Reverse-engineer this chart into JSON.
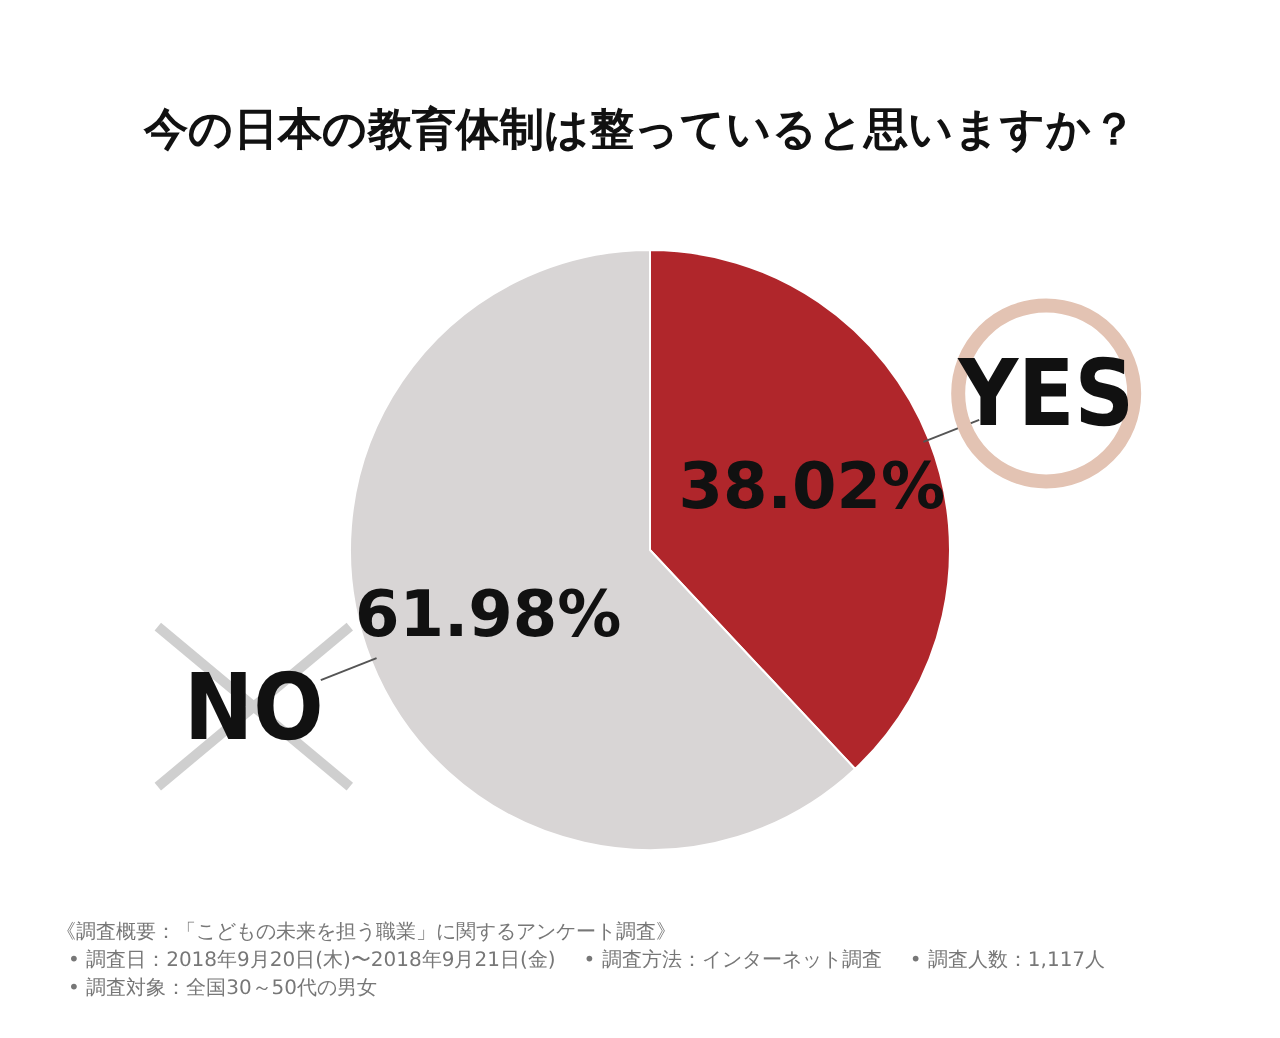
{
  "chart_data": {
    "type": "pie",
    "title": "今の日本の教育体制は整っていると思いますか？",
    "categories": [
      "YES",
      "NO"
    ],
    "values": [
      38.02,
      61.98
    ],
    "value_labels": [
      "38.02%",
      "61.98%"
    ],
    "colors": [
      "#b0262b",
      "#d8d5d5"
    ],
    "legend": false,
    "annotations": [
      "《調査概要：「こどもの未来を担う職業」に関するアンケート調査》",
      "• 調査日：2018年9月20日(木)〜2018年9月21日(金)",
      "• 調査方法：インターネット調査",
      "• 調査人数：1,117人",
      "• 調査対象：全国30～50代の男女"
    ]
  }
}
